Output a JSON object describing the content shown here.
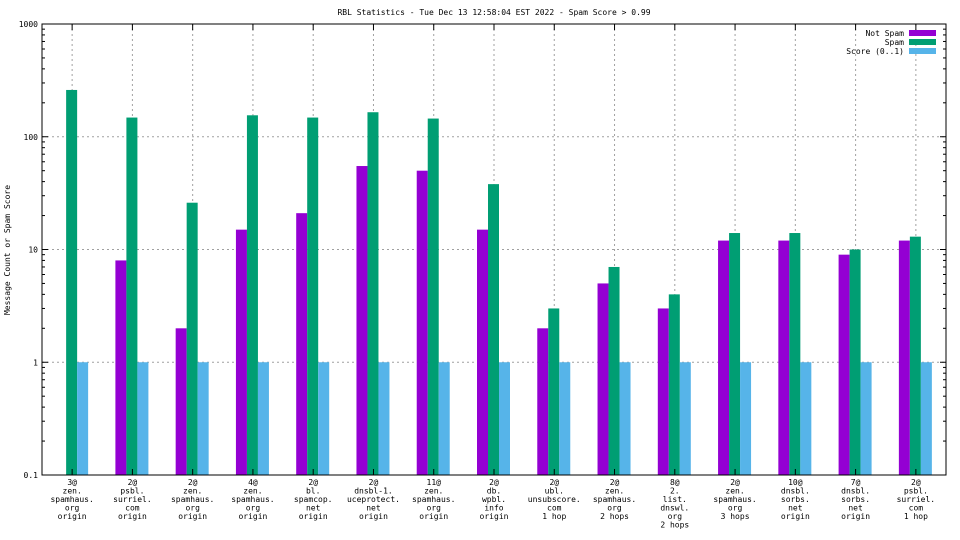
{
  "chart_data": {
    "type": "bar",
    "title": "RBL Statistics - Tue Dec 13 12:58:04 EST 2022 - Spam Score > 0.99",
    "xlabel": "",
    "ylabel": "Message Count or Spam Score",
    "yscale": "log",
    "ylim": [
      0.1,
      1000
    ],
    "yticks": [
      "0.1",
      "1",
      "10",
      "100",
      "1000"
    ],
    "grid": true,
    "legend_position": "top-right",
    "categories": [
      [
        "3@",
        "zen.",
        "spamhaus.",
        "org",
        "origin"
      ],
      [
        "2@",
        "psbl.",
        "surriel.",
        "com",
        "origin"
      ],
      [
        "2@",
        "zen.",
        "spamhaus.",
        "org",
        "origin"
      ],
      [
        "4@",
        "zen.",
        "spamhaus.",
        "org",
        "origin"
      ],
      [
        "2@",
        "bl.",
        "spamcop.",
        "net",
        "origin"
      ],
      [
        "2@",
        "dnsbl-1.",
        "uceprotect.",
        "net",
        "origin"
      ],
      [
        "11@",
        "zen.",
        "spamhaus.",
        "org",
        "origin"
      ],
      [
        "2@",
        "db.",
        "wpbl.",
        "info",
        "origin"
      ],
      [
        "2@",
        "ubl.",
        "unsubscore.",
        "com",
        "1 hop"
      ],
      [
        "2@",
        "zen.",
        "spamhaus.",
        "org",
        "2 hops"
      ],
      [
        "8@",
        "2.",
        "list.",
        "dnswl.",
        "org",
        "2 hops"
      ],
      [
        "2@",
        "zen.",
        "spamhaus.",
        "org",
        "3 hops"
      ],
      [
        "10@",
        "dnsbl.",
        "sorbs.",
        "net",
        "origin"
      ],
      [
        "7@",
        "dnsbl.",
        "sorbs.",
        "net",
        "origin"
      ],
      [
        "2@",
        "psbl.",
        "surriel.",
        "com",
        "1 hop"
      ]
    ],
    "series": [
      {
        "name": "Not Spam",
        "color": "#9400d3",
        "values": [
          0,
          8,
          2,
          15,
          21,
          55,
          50,
          15,
          2,
          5,
          3,
          12,
          12,
          9,
          12
        ]
      },
      {
        "name": "Spam",
        "color": "#009e73",
        "values": [
          260,
          148,
          26,
          155,
          148,
          165,
          145,
          38,
          3,
          7,
          4,
          14,
          14,
          10,
          13
        ]
      },
      {
        "name": "Score (0..1)",
        "color": "#56b4e9",
        "values": [
          1,
          1,
          1,
          1,
          1,
          1,
          1,
          1,
          1,
          1,
          1,
          1,
          1,
          1,
          1
        ]
      }
    ]
  }
}
